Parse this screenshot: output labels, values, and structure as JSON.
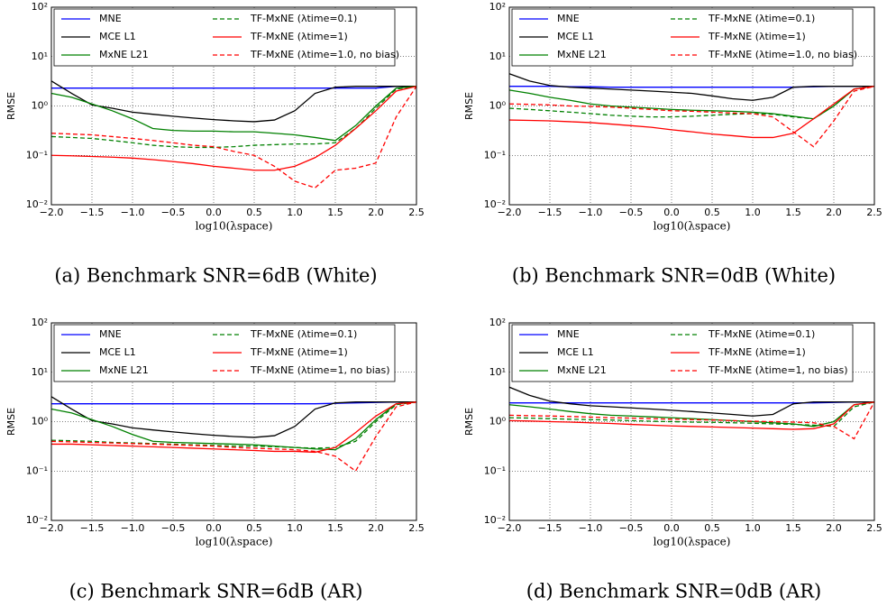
{
  "chart_data": [
    {
      "type": "line",
      "caption": "(a) Benchmark SNR=6dB (White)",
      "xlabel": "log10(λspace)",
      "ylabel": "RMSE",
      "log_y": true,
      "grid": true,
      "legend": "upper",
      "xlim": [
        -2.0,
        2.5
      ],
      "ylim": [
        0.01,
        100
      ],
      "xticks": [
        {
          "value": -2,
          "label": "−2.0"
        },
        {
          "value": -1.5,
          "label": "−1.5"
        },
        {
          "value": -1,
          "label": "−1.0"
        },
        {
          "value": -0.5,
          "label": "−0.5"
        },
        {
          "value": 0,
          "label": "0.0"
        },
        0.5,
        {
          "value": 1,
          "label": "1.0"
        },
        1.5,
        {
          "value": 2,
          "label": "2.0"
        },
        2.5
      ],
      "yticks": [
        {
          "value": 0.01,
          "label": "10⁻²"
        },
        {
          "value": 0.1,
          "label": "10⁻¹"
        },
        {
          "value": 1,
          "label": "10⁰"
        },
        {
          "value": 10,
          "label": "10¹"
        },
        {
          "value": 100,
          "label": "10²"
        }
      ],
      "x": [
        -2.0,
        -1.75,
        -1.5,
        -1.25,
        -1.0,
        -0.75,
        -0.5,
        -0.25,
        0.0,
        0.25,
        0.5,
        0.75,
        1.0,
        1.25,
        1.5,
        1.75,
        2.0,
        2.25,
        2.5
      ],
      "series": [
        {
          "name": "MNE",
          "color": "#0000ff",
          "dashed": false,
          "values": [
            2.3,
            2.3,
            2.3,
            2.3,
            2.3,
            2.3,
            2.3,
            2.3,
            2.3,
            2.3,
            2.3,
            2.3,
            2.3,
            2.3,
            2.3,
            2.3,
            2.3,
            2.5,
            2.5
          ]
        },
        {
          "name": "MCE L1",
          "color": "#000000",
          "dashed": false,
          "values": [
            3.2,
            1.8,
            1.05,
            0.9,
            0.75,
            0.68,
            0.62,
            0.57,
            0.53,
            0.5,
            0.48,
            0.52,
            0.8,
            1.8,
            2.4,
            2.5,
            2.5,
            2.5,
            2.5
          ]
        },
        {
          "name": "MxNE L21",
          "color": "#008000",
          "dashed": false,
          "values": [
            1.8,
            1.5,
            1.1,
            0.8,
            0.55,
            0.35,
            0.32,
            0.31,
            0.31,
            0.3,
            0.3,
            0.28,
            0.26,
            0.23,
            0.2,
            0.4,
            1.0,
            2.3,
            2.5
          ]
        },
        {
          "name": "TF-MxNE (λtime=0.1)",
          "color": "#008000",
          "dashed": true,
          "values": [
            0.24,
            0.23,
            0.22,
            0.2,
            0.18,
            0.16,
            0.15,
            0.145,
            0.145,
            0.15,
            0.16,
            0.165,
            0.17,
            0.17,
            0.18,
            0.35,
            0.9,
            2.2,
            2.5
          ]
        },
        {
          "name": "TF-MxNE (λtime=1)",
          "color": "#ff0000",
          "dashed": false,
          "values": [
            0.1,
            0.098,
            0.095,
            0.092,
            0.088,
            0.082,
            0.075,
            0.068,
            0.06,
            0.055,
            0.05,
            0.05,
            0.06,
            0.09,
            0.16,
            0.35,
            0.8,
            2.0,
            2.5
          ]
        },
        {
          "name": "TF-MxNE (λtime=1.0, no bias)",
          "color": "#ff0000",
          "dashed": true,
          "values": [
            0.28,
            0.27,
            0.26,
            0.24,
            0.22,
            0.2,
            0.18,
            0.16,
            0.15,
            0.12,
            0.1,
            0.06,
            0.03,
            0.022,
            0.05,
            0.055,
            0.07,
            0.6,
            2.5
          ]
        }
      ]
    },
    {
      "type": "line",
      "caption": "(b) Benchmark SNR=0dB (White)",
      "xlabel": "log10(λspace)",
      "ylabel": "RMSE",
      "log_y": true,
      "grid": true,
      "legend": "upper",
      "xlim": [
        -2.0,
        2.5
      ],
      "ylim": [
        0.01,
        100
      ],
      "xticks": [
        {
          "value": -2,
          "label": "−2.0"
        },
        {
          "value": -1.5,
          "label": "−1.5"
        },
        {
          "value": -1,
          "label": "−1.0"
        },
        {
          "value": -0.5,
          "label": "−0.5"
        },
        {
          "value": 0,
          "label": "0.0"
        },
        0.5,
        {
          "value": 1,
          "label": "1.0"
        },
        1.5,
        {
          "value": 2,
          "label": "2.0"
        },
        2.5
      ],
      "yticks": [
        {
          "value": 0.01,
          "label": "10⁻²"
        },
        {
          "value": 0.1,
          "label": "10⁻¹"
        },
        {
          "value": 1,
          "label": "10⁰"
        },
        {
          "value": 10,
          "label": "10¹"
        },
        {
          "value": 100,
          "label": "10²"
        }
      ],
      "x": [
        -2.0,
        -1.75,
        -1.5,
        -1.25,
        -1.0,
        -0.75,
        -0.5,
        -0.25,
        0.0,
        0.25,
        0.5,
        0.75,
        1.0,
        1.25,
        1.5,
        1.75,
        2.0,
        2.25,
        2.5
      ],
      "series": [
        {
          "name": "MNE",
          "color": "#0000ff",
          "dashed": false,
          "values": [
            2.5,
            2.5,
            2.5,
            2.45,
            2.45,
            2.4,
            2.4,
            2.4,
            2.4,
            2.4,
            2.4,
            2.4,
            2.4,
            2.4,
            2.4,
            2.45,
            2.5,
            2.5,
            2.5
          ]
        },
        {
          "name": "MCE L1",
          "color": "#000000",
          "dashed": false,
          "values": [
            4.5,
            3.2,
            2.6,
            2.4,
            2.3,
            2.2,
            2.1,
            2.0,
            1.9,
            1.8,
            1.6,
            1.4,
            1.3,
            1.5,
            2.4,
            2.5,
            2.5,
            2.5,
            2.5
          ]
        },
        {
          "name": "MxNE L21",
          "color": "#008000",
          "dashed": false,
          "values": [
            2.1,
            1.8,
            1.5,
            1.3,
            1.1,
            1.0,
            0.95,
            0.9,
            0.85,
            0.82,
            0.8,
            0.78,
            0.75,
            0.7,
            0.62,
            0.55,
            1.0,
            2.2,
            2.5
          ]
        },
        {
          "name": "TF-MxNE (λtime=0.1)",
          "color": "#008000",
          "dashed": true,
          "values": [
            0.9,
            0.85,
            0.8,
            0.75,
            0.7,
            0.65,
            0.62,
            0.6,
            0.6,
            0.62,
            0.65,
            0.68,
            0.7,
            0.68,
            0.6,
            0.55,
            1.0,
            2.2,
            2.5
          ]
        },
        {
          "name": "TF-MxNE (λtime=1)",
          "color": "#ff0000",
          "dashed": false,
          "values": [
            0.52,
            0.51,
            0.5,
            0.48,
            0.46,
            0.43,
            0.4,
            0.37,
            0.33,
            0.3,
            0.27,
            0.25,
            0.23,
            0.23,
            0.28,
            0.55,
            1.1,
            2.2,
            2.5
          ]
        },
        {
          "name": "TF-MxNE (λtime=1.0, no bias)",
          "color": "#ff0000",
          "dashed": true,
          "values": [
            1.1,
            1.08,
            1.05,
            1.0,
            0.98,
            0.95,
            0.9,
            0.85,
            0.8,
            0.78,
            0.75,
            0.72,
            0.7,
            0.6,
            0.3,
            0.15,
            0.5,
            2.0,
            2.5
          ]
        }
      ]
    },
    {
      "type": "line",
      "caption": "(c) Benchmark SNR=6dB (AR)",
      "xlabel": "log10(λspace)",
      "ylabel": "RMSE",
      "log_y": true,
      "grid": true,
      "legend": "upper",
      "xlim": [
        -2.0,
        2.5
      ],
      "ylim": [
        0.01,
        100
      ],
      "xticks": [
        {
          "value": -2,
          "label": "−2.0"
        },
        {
          "value": -1.5,
          "label": "−1.5"
        },
        {
          "value": -1,
          "label": "−1.0"
        },
        {
          "value": -0.5,
          "label": "−0.5"
        },
        {
          "value": 0,
          "label": "0.0"
        },
        0.5,
        {
          "value": 1,
          "label": "1.0"
        },
        1.5,
        {
          "value": 2,
          "label": "2.0"
        },
        2.5
      ],
      "yticks": [
        {
          "value": 0.01,
          "label": "10⁻²"
        },
        {
          "value": 0.1,
          "label": "10⁻¹"
        },
        {
          "value": 1,
          "label": "10⁰"
        },
        {
          "value": 10,
          "label": "10¹"
        },
        {
          "value": 100,
          "label": "10²"
        }
      ],
      "x": [
        -2.0,
        -1.75,
        -1.5,
        -1.25,
        -1.0,
        -0.75,
        -0.5,
        -0.25,
        0.0,
        0.25,
        0.5,
        0.75,
        1.0,
        1.25,
        1.5,
        1.75,
        2.0,
        2.25,
        2.5
      ],
      "series": [
        {
          "name": "MNE",
          "color": "#0000ff",
          "dashed": false,
          "values": [
            2.3,
            2.3,
            2.3,
            2.3,
            2.3,
            2.3,
            2.3,
            2.3,
            2.3,
            2.3,
            2.3,
            2.3,
            2.3,
            2.3,
            2.35,
            2.4,
            2.45,
            2.5,
            2.5
          ]
        },
        {
          "name": "MCE L1",
          "color": "#000000",
          "dashed": false,
          "values": [
            3.2,
            1.8,
            1.05,
            0.9,
            0.75,
            0.68,
            0.62,
            0.57,
            0.53,
            0.5,
            0.48,
            0.52,
            0.8,
            1.8,
            2.4,
            2.5,
            2.5,
            2.5,
            2.5
          ]
        },
        {
          "name": "MxNE L21",
          "color": "#008000",
          "dashed": false,
          "values": [
            1.8,
            1.5,
            1.1,
            0.8,
            0.55,
            0.4,
            0.38,
            0.37,
            0.36,
            0.35,
            0.34,
            0.32,
            0.3,
            0.28,
            0.27,
            0.45,
            1.1,
            2.3,
            2.5
          ]
        },
        {
          "name": "TF-MxNE (λtime=0.1)",
          "color": "#008000",
          "dashed": true,
          "values": [
            0.42,
            0.41,
            0.4,
            0.38,
            0.37,
            0.36,
            0.35,
            0.34,
            0.33,
            0.32,
            0.32,
            0.31,
            0.3,
            0.29,
            0.3,
            0.4,
            1.0,
            2.2,
            2.5
          ]
        },
        {
          "name": "TF-MxNE (λtime=1)",
          "color": "#ff0000",
          "dashed": false,
          "values": [
            0.35,
            0.35,
            0.34,
            0.33,
            0.32,
            0.31,
            0.3,
            0.29,
            0.28,
            0.27,
            0.26,
            0.25,
            0.25,
            0.24,
            0.3,
            0.6,
            1.3,
            2.3,
            2.5
          ]
        },
        {
          "name": "TF-MxNE (λtime=1, no bias)",
          "color": "#ff0000",
          "dashed": true,
          "values": [
            0.4,
            0.39,
            0.38,
            0.37,
            0.36,
            0.35,
            0.34,
            0.33,
            0.32,
            0.3,
            0.29,
            0.28,
            0.27,
            0.25,
            0.2,
            0.1,
            0.5,
            2.0,
            2.5
          ]
        }
      ]
    },
    {
      "type": "line",
      "caption": "(d) Benchmark SNR=0dB (AR)",
      "xlabel": "log10(λspace)",
      "ylabel": "RMSE",
      "log_y": true,
      "grid": true,
      "legend": "upper",
      "xlim": [
        -2.0,
        2.5
      ],
      "ylim": [
        0.01,
        100
      ],
      "xticks": [
        {
          "value": -2,
          "label": "−2.0"
        },
        {
          "value": -1.5,
          "label": "−1.5"
        },
        {
          "value": -1,
          "label": "−1.0"
        },
        {
          "value": -0.5,
          "label": "−0.5"
        },
        {
          "value": 0,
          "label": "0.0"
        },
        0.5,
        {
          "value": 1,
          "label": "1.0"
        },
        1.5,
        {
          "value": 2,
          "label": "2.0"
        },
        2.5
      ],
      "yticks": [
        {
          "value": 0.01,
          "label": "10⁻²"
        },
        {
          "value": 0.1,
          "label": "10⁻¹"
        },
        {
          "value": 1,
          "label": "10⁰"
        },
        {
          "value": 10,
          "label": "10¹"
        },
        {
          "value": 100,
          "label": "10²"
        }
      ],
      "x": [
        -2.0,
        -1.75,
        -1.5,
        -1.25,
        -1.0,
        -0.75,
        -0.5,
        -0.25,
        0.0,
        0.25,
        0.5,
        0.75,
        1.0,
        1.25,
        1.5,
        1.75,
        2.0,
        2.25,
        2.5
      ],
      "series": [
        {
          "name": "MNE",
          "color": "#0000ff",
          "dashed": false,
          "values": [
            2.4,
            2.4,
            2.4,
            2.4,
            2.4,
            2.4,
            2.4,
            2.4,
            2.4,
            2.4,
            2.4,
            2.4,
            2.4,
            2.4,
            2.4,
            2.4,
            2.45,
            2.5,
            2.5
          ]
        },
        {
          "name": "MCE L1",
          "color": "#000000",
          "dashed": false,
          "values": [
            5.0,
            3.4,
            2.6,
            2.3,
            2.1,
            2.0,
            1.9,
            1.8,
            1.7,
            1.6,
            1.5,
            1.4,
            1.3,
            1.4,
            2.3,
            2.5,
            2.5,
            2.5,
            2.5
          ]
        },
        {
          "name": "MxNE L21",
          "color": "#008000",
          "dashed": false,
          "values": [
            2.2,
            2.0,
            1.8,
            1.6,
            1.45,
            1.35,
            1.3,
            1.25,
            1.2,
            1.15,
            1.1,
            1.05,
            1.0,
            0.95,
            0.9,
            0.8,
            1.0,
            2.2,
            2.5
          ]
        },
        {
          "name": "TF-MxNE (λtime=0.1)",
          "color": "#008000",
          "dashed": true,
          "values": [
            1.2,
            1.18,
            1.15,
            1.12,
            1.1,
            1.08,
            1.05,
            1.02,
            1.0,
            0.98,
            0.97,
            0.95,
            0.93,
            0.9,
            0.88,
            0.85,
            0.8,
            2.0,
            2.5
          ]
        },
        {
          "name": "TF-MxNE (λtime=1)",
          "color": "#ff0000",
          "dashed": false,
          "values": [
            1.05,
            1.03,
            1.0,
            0.98,
            0.95,
            0.92,
            0.88,
            0.85,
            0.82,
            0.8,
            0.78,
            0.76,
            0.74,
            0.72,
            0.7,
            0.72,
            0.9,
            2.2,
            2.5
          ]
        },
        {
          "name": "TF-MxNE (λtime=1, no bias)",
          "color": "#ff0000",
          "dashed": true,
          "values": [
            1.35,
            1.32,
            1.3,
            1.27,
            1.24,
            1.2,
            1.18,
            1.15,
            1.12,
            1.1,
            1.08,
            1.05,
            1.02,
            1.0,
            0.98,
            0.95,
            0.8,
            0.45,
            2.5
          ]
        }
      ]
    }
  ]
}
